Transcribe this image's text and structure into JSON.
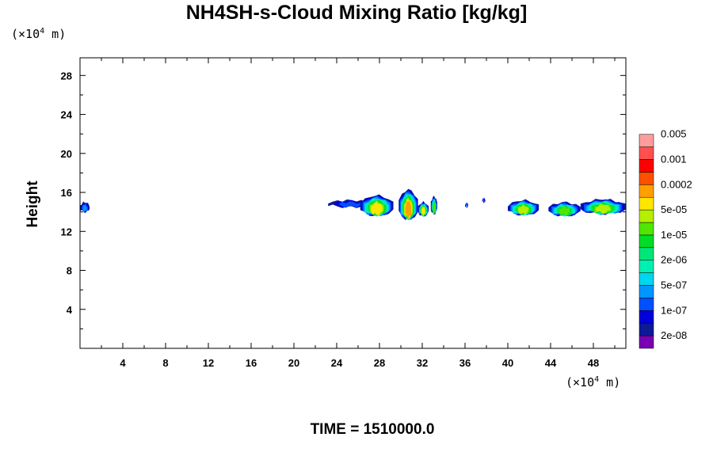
{
  "chart_data": {
    "type": "heatmap",
    "title": "NH4SH-s-Cloud Mixing Ratio [kg/kg]",
    "xlabel": "",
    "ylabel": "Height",
    "x_unit_prefix": "(×10",
    "x_unit_exp": "4",
    "x_unit_suffix": " m)",
    "y_unit_prefix": "(×10",
    "y_unit_exp": "4",
    "y_unit_suffix": " m)",
    "xlim": [
      0,
      51
    ],
    "ylim": [
      0,
      29.5
    ],
    "x_ticks": [
      4,
      8,
      12,
      16,
      20,
      24,
      28,
      32,
      36,
      40,
      44,
      48
    ],
    "y_ticks": [
      4,
      8,
      12,
      16,
      20,
      24,
      28
    ],
    "annotation": "TIME = 1510000.0",
    "colorbar": {
      "colors": [
        "#7a00b4",
        "#0c1a96",
        "#0000dc",
        "#0050ff",
        "#0096ff",
        "#00d6f0",
        "#00f0b4",
        "#00e678",
        "#00dc28",
        "#50e600",
        "#b4f000",
        "#ffe600",
        "#ffa000",
        "#ff5000",
        "#ff0000",
        "#ff5050",
        "#ff9c9c"
      ],
      "labels": [
        "2e-08",
        "1e-07",
        "5e-07",
        "2e-06",
        "1e-05",
        "5e-05",
        "0.0002",
        "0.001",
        "0.005"
      ]
    },
    "clouds": [
      {
        "x": [
          0.0,
          0.9
        ],
        "y_top": 15.0,
        "y_bottom": 14.0,
        "peak_level": 3
      },
      {
        "x": [
          23.2,
          27.2
        ],
        "y_top": 15.2,
        "y_bottom": 14.5,
        "peak_level": 2
      },
      {
        "x": [
          26.2,
          29.3
        ],
        "y_top": 15.7,
        "y_bottom": 13.6,
        "peak_level": 10
      },
      {
        "x": [
          29.8,
          31.6
        ],
        "y_top": 16.3,
        "y_bottom": 13.2,
        "peak_level": 11
      },
      {
        "x": [
          31.6,
          32.6
        ],
        "y_top": 15.0,
        "y_bottom": 13.6,
        "peak_level": 10
      },
      {
        "x": [
          32.8,
          33.4
        ],
        "y_top": 15.6,
        "y_bottom": 13.8,
        "peak_level": 8
      },
      {
        "x": [
          36.0,
          36.3
        ],
        "y_top": 14.9,
        "y_bottom": 14.5,
        "peak_level": 3
      },
      {
        "x": [
          37.6,
          37.9
        ],
        "y_top": 15.4,
        "y_bottom": 15.0,
        "peak_level": 2
      },
      {
        "x": [
          40.0,
          42.9
        ],
        "y_top": 15.2,
        "y_bottom": 13.7,
        "peak_level": 9
      },
      {
        "x": [
          43.8,
          46.8
        ],
        "y_top": 15.0,
        "y_bottom": 13.6,
        "peak_level": 8
      },
      {
        "x": [
          46.8,
          51.0
        ],
        "y_top": 15.3,
        "y_bottom": 13.8,
        "peak_level": 9
      }
    ]
  }
}
